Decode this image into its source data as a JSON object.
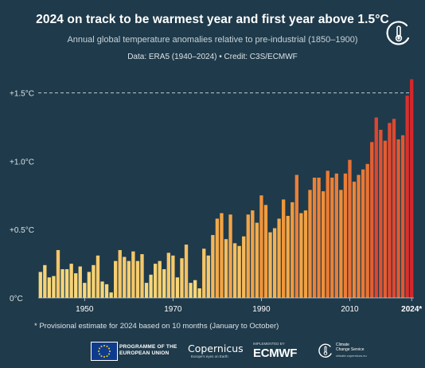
{
  "header": {
    "title": "2024 on track to be warmest year and first year above 1.5°C",
    "subtitle": "Annual global temperature anomalies relative to pre-industrial (1850–1900)",
    "source": "Data: ERA5 (1940–2024) • Credit: C3S/ECMWF"
  },
  "footnote": "* Provisional estimate for 2024 based on 10 months (January to October)",
  "footer": {
    "eu_line1": "PROGRAMME OF THE",
    "eu_line2": "EUROPEAN UNION",
    "copernicus": "Copernicus",
    "copernicus_tagline": "Europe's eyes on Earth",
    "ecmwf_small": "IMPLEMENTED BY",
    "ecmwf": "ECMWF",
    "c3s_line1": "Climate",
    "c3s_line2": "Change Service",
    "c3s_url": "climate.copernicus.eu"
  },
  "colors": {
    "background": "#1f3a4a",
    "bar_low": "#f6d77a",
    "bar_mid": "#f29a3a",
    "bar_high": "#d7262b",
    "threshold_line": "#bfcbd3"
  },
  "icons": [
    "copernicus-c3s-thermometer-icon",
    "eu-flag-icon",
    "copernicus-swoosh-icon",
    "c3s-logo-icon"
  ],
  "chart_data": {
    "type": "bar",
    "x": [
      1940,
      1941,
      1942,
      1943,
      1944,
      1945,
      1946,
      1947,
      1948,
      1949,
      1950,
      1951,
      1952,
      1953,
      1954,
      1955,
      1956,
      1957,
      1958,
      1959,
      1960,
      1961,
      1962,
      1963,
      1964,
      1965,
      1966,
      1967,
      1968,
      1969,
      1970,
      1971,
      1972,
      1973,
      1974,
      1975,
      1976,
      1977,
      1978,
      1979,
      1980,
      1981,
      1982,
      1983,
      1984,
      1985,
      1986,
      1987,
      1988,
      1989,
      1990,
      1991,
      1992,
      1993,
      1994,
      1995,
      1996,
      1997,
      1998,
      1999,
      2000,
      2001,
      2002,
      2003,
      2004,
      2005,
      2006,
      2007,
      2008,
      2009,
      2010,
      2011,
      2012,
      2013,
      2014,
      2015,
      2016,
      2017,
      2018,
      2019,
      2020,
      2021,
      2022,
      2023,
      2024
    ],
    "values": [
      0.19,
      0.24,
      0.15,
      0.16,
      0.35,
      0.21,
      0.21,
      0.25,
      0.18,
      0.23,
      0.11,
      0.19,
      0.24,
      0.31,
      0.12,
      0.1,
      0.04,
      0.27,
      0.35,
      0.3,
      0.27,
      0.34,
      0.27,
      0.32,
      0.11,
      0.17,
      0.25,
      0.27,
      0.21,
      0.33,
      0.31,
      0.15,
      0.29,
      0.39,
      0.11,
      0.13,
      0.07,
      0.36,
      0.31,
      0.46,
      0.58,
      0.62,
      0.43,
      0.61,
      0.4,
      0.38,
      0.45,
      0.61,
      0.64,
      0.55,
      0.75,
      0.68,
      0.48,
      0.51,
      0.58,
      0.72,
      0.6,
      0.7,
      0.9,
      0.62,
      0.64,
      0.79,
      0.88,
      0.88,
      0.78,
      0.93,
      0.88,
      0.91,
      0.79,
      0.91,
      1.01,
      0.85,
      0.9,
      0.94,
      0.98,
      1.14,
      1.32,
      1.23,
      1.15,
      1.28,
      1.31,
      1.16,
      1.19,
      1.48,
      1.6
    ],
    "tick_labels": [
      "1950",
      "1970",
      "1990",
      "2010",
      "2024*"
    ],
    "tick_years": [
      1950,
      1970,
      1990,
      2010,
      2024
    ],
    "y_tick_labels": [
      "0°C",
      "+0.5°C",
      "+1.0°C",
      "+1.5°C"
    ],
    "y_tick_values": [
      0,
      0.5,
      1.0,
      1.5
    ],
    "ylim": [
      0,
      1.62
    ],
    "threshold": 1.5,
    "grid": false,
    "xlabel": "",
    "ylabel": ""
  }
}
